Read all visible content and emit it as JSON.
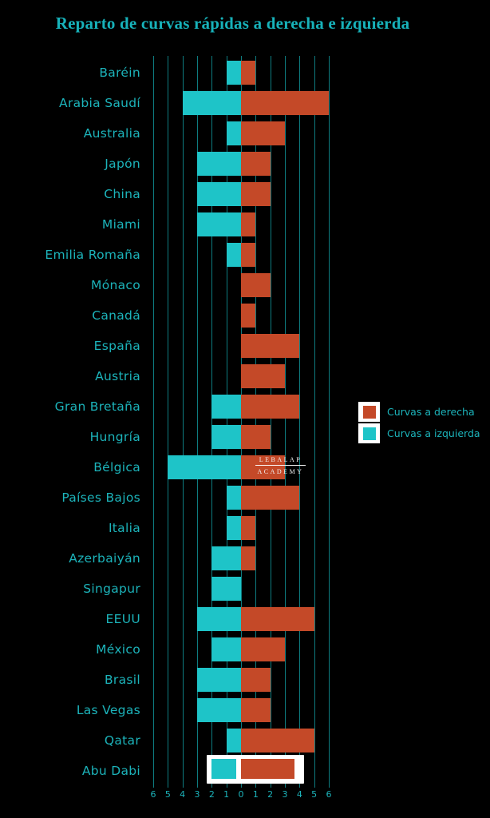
{
  "title": "Reparto de curvas rápidas a derecha e izquierda",
  "watermark": {
    "line1": "LEBALAP",
    "line2": "ACADEMY"
  },
  "legend": {
    "items": [
      {
        "label": "Curvas a derecha",
        "color": "#c44928"
      },
      {
        "label": "Curvas a izquierda",
        "color": "#1ec4c8"
      }
    ]
  },
  "colors": {
    "background": "#000000",
    "bar_right_orange": "#c44928",
    "bar_left_teal": "#1ec4c8",
    "text_teal": "#1cb3ba",
    "title_teal": "#17b2ba",
    "gridline": "#0e7c80",
    "highlight_frame": "#ffffff"
  },
  "chart_data": {
    "type": "bar",
    "orientation": "horizontal-diverging",
    "title": "Reparto de curvas rápidas a derecha e izquierda",
    "categories": [
      "Baréin",
      "Arabia Saudí",
      "Australia",
      "Japón",
      "China",
      "Miami",
      "Emilia Romaña",
      "Mónaco",
      "Canadá",
      "España",
      "Austria",
      "Gran Bretaña",
      "Hungría",
      "Bélgica",
      "Países Bajos",
      "Italia",
      "Azerbaiyán",
      "Singapur",
      "EEUU",
      "México",
      "Brasil",
      "Las Vegas",
      "Qatar",
      "Abu Dabi"
    ],
    "series": [
      {
        "name": "Curvas a izquierda",
        "direction": "left",
        "color": "#1ec4c8",
        "values": [
          1,
          4,
          1,
          3,
          3,
          3,
          1,
          0,
          0,
          0,
          0,
          2,
          2,
          5,
          1,
          1,
          2,
          2,
          3,
          2,
          3,
          3,
          1,
          2
        ]
      },
      {
        "name": "Curvas a derecha",
        "direction": "right",
        "color": "#c44928",
        "values": [
          1,
          6,
          3,
          2,
          2,
          1,
          1,
          2,
          1,
          4,
          3,
          4,
          2,
          3,
          4,
          1,
          1,
          0,
          5,
          3,
          2,
          2,
          5,
          4
        ]
      }
    ],
    "x_ticks": [
      "6",
      "5",
      "4",
      "3",
      "2",
      "1",
      "0",
      "1",
      "2",
      "3",
      "4",
      "5",
      "6"
    ],
    "xlim": [
      -6,
      6
    ],
    "grid": true,
    "legend_position": "right",
    "highlight_category": "Abu Dabi"
  }
}
